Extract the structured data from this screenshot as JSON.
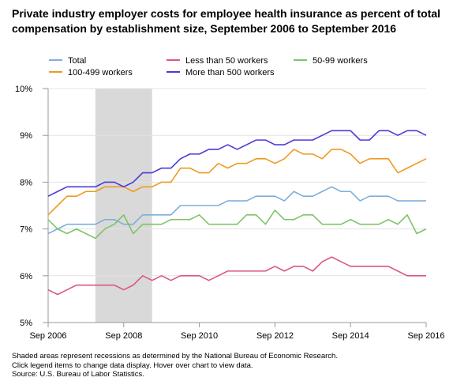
{
  "chart_data": {
    "type": "line",
    "title": "Private industry employer costs for employee health insurance as percent of total compensation by establishment size, September 2006 to September 2016",
    "xlabel": "",
    "ylabel": "",
    "x": [
      "Sep 2006",
      "Dec 2006",
      "Mar 2007",
      "Jun 2007",
      "Sep 2007",
      "Dec 2007",
      "Mar 2008",
      "Jun 2008",
      "Sep 2008",
      "Dec 2008",
      "Mar 2009",
      "Jun 2009",
      "Sep 2009",
      "Dec 2009",
      "Mar 2010",
      "Jun 2010",
      "Sep 2010",
      "Dec 2010",
      "Mar 2011",
      "Jun 2011",
      "Sep 2011",
      "Dec 2011",
      "Mar 2012",
      "Jun 2012",
      "Sep 2012",
      "Dec 2012",
      "Mar 2013",
      "Jun 2013",
      "Sep 2013",
      "Dec 2013",
      "Mar 2014",
      "Jun 2014",
      "Sep 2014",
      "Dec 2014",
      "Mar 2015",
      "Jun 2015",
      "Sep 2015",
      "Dec 2015",
      "Mar 2016",
      "Jun 2016",
      "Sep 2016"
    ],
    "x_tick_labels": [
      "Sep 2006",
      "Sep 2008",
      "Sep 2010",
      "Sep 2012",
      "Sep 2014",
      "Sep 2016"
    ],
    "y_tick_labels": [
      "5%",
      "6%",
      "7%",
      "8%",
      "9%",
      "10%"
    ],
    "ylim": [
      5,
      10
    ],
    "grid": true,
    "legend_position": "top",
    "recession_shading": {
      "start": "Dec 2007",
      "end": "Jun 2009",
      "color": "#d9d9d9"
    },
    "series": [
      {
        "name": "Total",
        "color": "#7bafdc",
        "values": [
          6.9,
          7.0,
          7.1,
          7.1,
          7.1,
          7.1,
          7.2,
          7.2,
          7.1,
          7.1,
          7.3,
          7.3,
          7.3,
          7.3,
          7.5,
          7.5,
          7.5,
          7.5,
          7.5,
          7.6,
          7.6,
          7.6,
          7.7,
          7.7,
          7.7,
          7.6,
          7.8,
          7.7,
          7.7,
          7.8,
          7.9,
          7.8,
          7.8,
          7.6,
          7.7,
          7.7,
          7.7,
          7.6,
          7.6,
          7.6,
          7.6
        ]
      },
      {
        "name": "Less than 50 workers",
        "color": "#d9578a",
        "values": [
          5.7,
          5.6,
          5.7,
          5.8,
          5.8,
          5.8,
          5.8,
          5.8,
          5.7,
          5.8,
          6.0,
          5.9,
          6.0,
          5.9,
          6.0,
          6.0,
          6.0,
          5.9,
          6.0,
          6.1,
          6.1,
          6.1,
          6.1,
          6.1,
          6.2,
          6.1,
          6.2,
          6.2,
          6.1,
          6.3,
          6.4,
          6.3,
          6.2,
          6.2,
          6.2,
          6.2,
          6.2,
          6.1,
          6.0,
          6.0,
          6.0
        ]
      },
      {
        "name": "50-99 workers",
        "color": "#7fc36a",
        "values": [
          7.2,
          7.0,
          6.9,
          7.0,
          6.9,
          6.8,
          7.0,
          7.1,
          7.3,
          6.9,
          7.1,
          7.1,
          7.1,
          7.2,
          7.2,
          7.2,
          7.3,
          7.1,
          7.1,
          7.1,
          7.1,
          7.3,
          7.3,
          7.1,
          7.4,
          7.2,
          7.2,
          7.3,
          7.3,
          7.1,
          7.1,
          7.1,
          7.2,
          7.1,
          7.1,
          7.1,
          7.2,
          7.1,
          7.3,
          6.9,
          7.0
        ]
      },
      {
        "name": "100-499 workers",
        "color": "#ee9a21",
        "values": [
          7.3,
          7.5,
          7.7,
          7.7,
          7.8,
          7.8,
          7.9,
          7.9,
          7.9,
          7.8,
          7.9,
          7.9,
          8.0,
          8.0,
          8.3,
          8.3,
          8.2,
          8.2,
          8.4,
          8.3,
          8.4,
          8.4,
          8.5,
          8.5,
          8.4,
          8.5,
          8.7,
          8.6,
          8.6,
          8.5,
          8.7,
          8.7,
          8.6,
          8.4,
          8.5,
          8.5,
          8.5,
          8.2,
          8.3,
          8.4,
          8.5
        ]
      },
      {
        "name": "More than 500 workers",
        "color": "#4b3ad9",
        "values": [
          7.7,
          7.8,
          7.9,
          7.9,
          7.9,
          7.9,
          8.0,
          8.0,
          7.9,
          8.0,
          8.2,
          8.2,
          8.3,
          8.3,
          8.5,
          8.6,
          8.6,
          8.7,
          8.7,
          8.8,
          8.7,
          8.8,
          8.9,
          8.9,
          8.8,
          8.8,
          8.9,
          8.9,
          8.9,
          9.0,
          9.1,
          9.1,
          9.1,
          8.9,
          8.9,
          9.1,
          9.1,
          9.0,
          9.1,
          9.1,
          9.0
        ]
      }
    ]
  },
  "notes": [
    "Shaded areas represent recessions as determined by the National Bureau of Economic Research.",
    "Click legend items to change data display. Hover over chart to view data.",
    "Source: U.S. Bureau of Labor Statistics."
  ]
}
